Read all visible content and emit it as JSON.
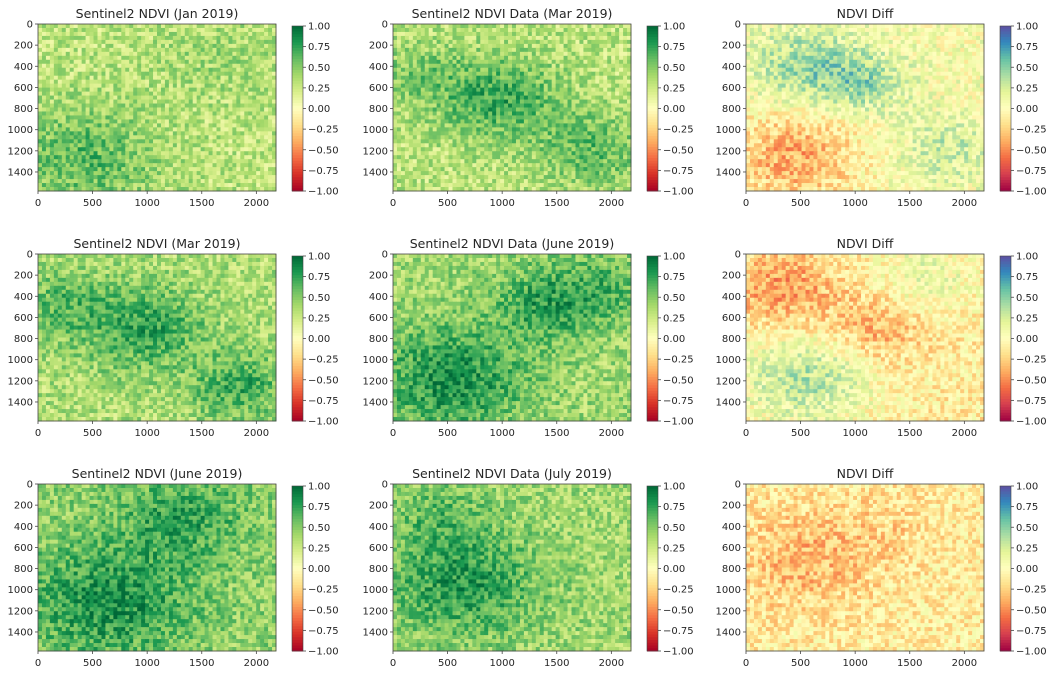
{
  "chart_data": [
    {
      "type": "heatmap",
      "title": "Sentinel2  NDVI (Jan 2019)",
      "xlim": [
        0,
        2180
      ],
      "ylim": [
        1580,
        0
      ],
      "xticks": [
        "0",
        "500",
        "1000",
        "1500",
        "2000"
      ],
      "yticks": [
        "0",
        "200",
        "400",
        "600",
        "800",
        "1000",
        "1200",
        "1400"
      ],
      "colorbar": {
        "cmap": "RdYlGn",
        "range": [
          -1,
          1
        ],
        "ticks": [
          "1.00",
          "0.75",
          "0.50",
          "0.25",
          "0.00",
          "−0.25",
          "−0.50",
          "−0.75",
          "−1.00"
        ]
      }
    },
    {
      "type": "heatmap",
      "title": "Sentinel2 NDVI Data  (Mar 2019)",
      "xlim": [
        0,
        2180
      ],
      "ylim": [
        1580,
        0
      ],
      "xticks": [
        "0",
        "500",
        "1000",
        "1500",
        "2000"
      ],
      "yticks": [
        "0",
        "200",
        "400",
        "600",
        "800",
        "1000",
        "1200",
        "1400"
      ],
      "colorbar": {
        "cmap": "RdYlGn",
        "range": [
          -1,
          1
        ],
        "ticks": [
          "1.00",
          "0.75",
          "0.50",
          "0.25",
          "0.00",
          "−0.25",
          "−0.50",
          "−0.75",
          "−1.00"
        ]
      }
    },
    {
      "type": "heatmap",
      "title": "NDVI Diff",
      "xlim": [
        0,
        2180
      ],
      "ylim": [
        1580,
        0
      ],
      "xticks": [
        "0",
        "500",
        "1000",
        "1500",
        "2000"
      ],
      "yticks": [
        "0",
        "200",
        "400",
        "600",
        "800",
        "1000",
        "1200",
        "1400"
      ],
      "colorbar": {
        "cmap": "Spectral",
        "range": [
          -1,
          1
        ],
        "ticks": [
          "1.00",
          "0.75",
          "0.50",
          "0.25",
          "0.00",
          "−0.25",
          "−0.50",
          "−0.75",
          "−1.00"
        ]
      }
    },
    {
      "type": "heatmap",
      "title": "Sentinel2  NDVI (Mar 2019)",
      "xlim": [
        0,
        2180
      ],
      "ylim": [
        1580,
        0
      ],
      "xticks": [
        "0",
        "500",
        "1000",
        "1500",
        "2000"
      ],
      "yticks": [
        "0",
        "200",
        "400",
        "600",
        "800",
        "1000",
        "1200",
        "1400"
      ],
      "colorbar": {
        "cmap": "RdYlGn",
        "range": [
          -1,
          1
        ],
        "ticks": [
          "1.00",
          "0.75",
          "0.50",
          "0.25",
          "0.00",
          "−0.25",
          "−0.50",
          "−0.75",
          "−1.00"
        ]
      }
    },
    {
      "type": "heatmap",
      "title": "Sentinel2 NDVI Data  (June 2019)",
      "xlim": [
        0,
        2180
      ],
      "ylim": [
        1580,
        0
      ],
      "xticks": [
        "0",
        "500",
        "1000",
        "1500",
        "2000"
      ],
      "yticks": [
        "0",
        "200",
        "400",
        "600",
        "800",
        "1000",
        "1200",
        "1400"
      ],
      "colorbar": {
        "cmap": "RdYlGn",
        "range": [
          -1,
          1
        ],
        "ticks": [
          "1.00",
          "0.75",
          "0.50",
          "0.25",
          "0.00",
          "−0.25",
          "−0.50",
          "−0.75",
          "−1.00"
        ]
      }
    },
    {
      "type": "heatmap",
      "title": "NDVI Diff",
      "xlim": [
        0,
        2180
      ],
      "ylim": [
        1580,
        0
      ],
      "xticks": [
        "0",
        "500",
        "1000",
        "1500",
        "2000"
      ],
      "yticks": [
        "0",
        "200",
        "400",
        "600",
        "800",
        "1000",
        "1200",
        "1400"
      ],
      "colorbar": {
        "cmap": "Spectral",
        "range": [
          -1,
          1
        ],
        "ticks": [
          "1.00",
          "0.75",
          "0.50",
          "0.25",
          "0.00",
          "−0.25",
          "−0.50",
          "−0.75",
          "−1.00"
        ]
      }
    },
    {
      "type": "heatmap",
      "title": "Sentinel2  NDVI (June 2019)",
      "xlim": [
        0,
        2180
      ],
      "ylim": [
        1580,
        0
      ],
      "xticks": [
        "0",
        "500",
        "1000",
        "1500",
        "2000"
      ],
      "yticks": [
        "0",
        "200",
        "400",
        "600",
        "800",
        "1000",
        "1200",
        "1400"
      ],
      "colorbar": {
        "cmap": "RdYlGn",
        "range": [
          -1,
          1
        ],
        "ticks": [
          "1.00",
          "0.75",
          "0.50",
          "0.25",
          "0.00",
          "−0.25",
          "−0.50",
          "−0.75",
          "−1.00"
        ]
      }
    },
    {
      "type": "heatmap",
      "title": "Sentinel2 NDVI Data  (July 2019)",
      "xlim": [
        0,
        2180
      ],
      "ylim": [
        1580,
        0
      ],
      "xticks": [
        "0",
        "500",
        "1000",
        "1500",
        "2000"
      ],
      "yticks": [
        "0",
        "200",
        "400",
        "600",
        "800",
        "1000",
        "1200",
        "1400"
      ],
      "colorbar": {
        "cmap": "RdYlGn",
        "range": [
          -1,
          1
        ],
        "ticks": [
          "1.00",
          "0.75",
          "0.50",
          "0.25",
          "0.00",
          "−0.25",
          "−0.50",
          "−0.75",
          "−1.00"
        ]
      }
    },
    {
      "type": "heatmap",
      "title": "NDVI Diff",
      "xlim": [
        0,
        2180
      ],
      "ylim": [
        1580,
        0
      ],
      "xticks": [
        "0",
        "500",
        "1000",
        "1500",
        "2000"
      ],
      "yticks": [
        "0",
        "200",
        "400",
        "600",
        "800",
        "1000",
        "1200",
        "1400"
      ],
      "colorbar": {
        "cmap": "Spectral",
        "range": [
          -1,
          1
        ],
        "ticks": [
          "1.00",
          "0.75",
          "0.50",
          "0.25",
          "0.00",
          "−0.25",
          "−0.50",
          "−0.75",
          "−1.00"
        ]
      }
    }
  ],
  "colormaps": {
    "RdYlGn": [
      "#a50026",
      "#d73027",
      "#f46d43",
      "#fdae61",
      "#fee08b",
      "#ffffbf",
      "#d9ef8b",
      "#a6d96a",
      "#66bd63",
      "#1a9850",
      "#006837"
    ],
    "Spectral": [
      "#9e0142",
      "#d53e4f",
      "#f46d43",
      "#fdae61",
      "#fee08b",
      "#ffffbf",
      "#e6f598",
      "#abdda4",
      "#66c2a5",
      "#3288bd",
      "#5e4fa2"
    ]
  }
}
